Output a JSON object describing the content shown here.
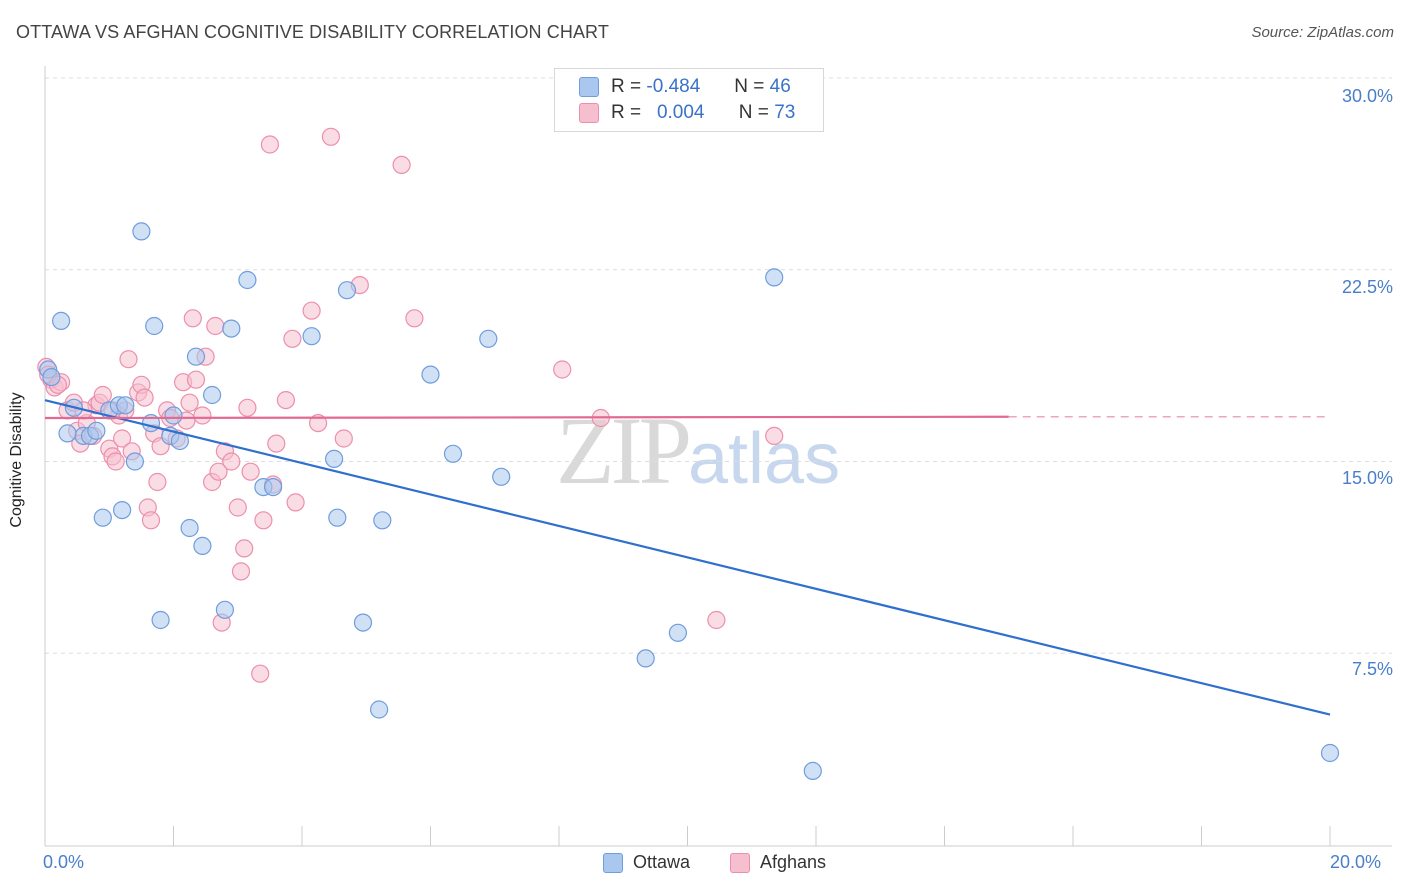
{
  "title": "OTTAWA VS AFGHAN COGNITIVE DISABILITY CORRELATION CHART",
  "source": "Source: ZipAtlas.com",
  "watermark": {
    "zip": "ZIP",
    "atlas": "atlas"
  },
  "legend": {
    "rows": [
      {
        "r_label": "R =",
        "r_value": "-0.484",
        "n_label": "N =",
        "n_value": "46"
      },
      {
        "r_label": "R =",
        "r_value": "0.004",
        "n_label": "N =",
        "n_value": "73"
      }
    ],
    "bottom": [
      "Ottawa",
      "Afghans"
    ]
  },
  "colors": {
    "ottawa_fill": "#aac8ef",
    "ottawa_stroke": "#6f9ddd",
    "ottawa_line": "#2f6fce",
    "afghan_fill": "#f6bfd0",
    "afghan_stroke": "#ec8fad",
    "afghan_line": "#e26a92",
    "grid": "#dddddd",
    "tick_text": "#4a7ec9"
  },
  "chart_data": {
    "type": "scatter",
    "title": "OTTAWA VS AFGHAN COGNITIVE DISABILITY CORRELATION CHART",
    "xlabel": "",
    "ylabel": "Cognitive Disability",
    "xlim": [
      0,
      20
    ],
    "ylim": [
      0,
      31
    ],
    "x_tick_labels": [
      "0.0%",
      "20.0%"
    ],
    "y_ticks": [
      7.5,
      15.0,
      22.5,
      30.0
    ],
    "y_tick_labels": [
      "7.5%",
      "15.0%",
      "22.5%",
      "30.0%"
    ],
    "series": [
      {
        "name": "Ottawa",
        "r": -0.484,
        "n": 46,
        "trend": {
          "x": [
            0,
            20
          ],
          "y": [
            17.4,
            5.1
          ],
          "dashed_from": null
        },
        "points": [
          [
            0.05,
            18.6
          ],
          [
            0.25,
            20.5
          ],
          [
            0.45,
            17.1
          ],
          [
            0.6,
            16.0
          ],
          [
            0.7,
            16.0
          ],
          [
            0.8,
            16.2
          ],
          [
            0.9,
            12.8
          ],
          [
            1.0,
            17.0
          ],
          [
            1.15,
            17.2
          ],
          [
            1.2,
            13.1
          ],
          [
            1.4,
            15.0
          ],
          [
            1.5,
            24.0
          ],
          [
            1.65,
            16.5
          ],
          [
            1.7,
            20.3
          ],
          [
            1.8,
            8.8
          ],
          [
            1.95,
            16.0
          ],
          [
            2.0,
            16.8
          ],
          [
            2.1,
            15.8
          ],
          [
            2.25,
            12.4
          ],
          [
            2.35,
            19.1
          ],
          [
            2.45,
            11.7
          ],
          [
            2.6,
            17.6
          ],
          [
            2.8,
            9.2
          ],
          [
            2.9,
            20.2
          ],
          [
            3.15,
            22.1
          ],
          [
            3.4,
            14.0
          ],
          [
            3.55,
            14.0
          ],
          [
            4.15,
            19.9
          ],
          [
            4.5,
            15.1
          ],
          [
            4.55,
            12.8
          ],
          [
            4.7,
            21.7
          ],
          [
            4.95,
            8.7
          ],
          [
            5.2,
            5.3
          ],
          [
            5.25,
            12.7
          ],
          [
            6.0,
            18.4
          ],
          [
            6.35,
            15.3
          ],
          [
            6.9,
            19.8
          ],
          [
            7.1,
            14.4
          ],
          [
            9.35,
            7.3
          ],
          [
            9.85,
            8.3
          ],
          [
            11.35,
            22.2
          ],
          [
            11.95,
            2.9
          ],
          [
            20.0,
            3.6
          ],
          [
            0.1,
            18.3
          ],
          [
            0.35,
            16.1
          ],
          [
            1.25,
            17.2
          ]
        ]
      },
      {
        "name": "Afghans",
        "r": 0.004,
        "n": 73,
        "trend": {
          "x": [
            0,
            15
          ],
          "y": [
            16.7,
            16.75
          ],
          "dashed_from": 15,
          "dashed_to": 20
        },
        "points": [
          [
            0.02,
            18.7
          ],
          [
            0.1,
            18.2
          ],
          [
            0.15,
            17.9
          ],
          [
            0.25,
            18.1
          ],
          [
            0.35,
            17.0
          ],
          [
            0.45,
            17.3
          ],
          [
            0.5,
            16.2
          ],
          [
            0.55,
            15.7
          ],
          [
            0.65,
            16.5
          ],
          [
            0.75,
            16.0
          ],
          [
            0.8,
            17.2
          ],
          [
            0.85,
            17.3
          ],
          [
            0.9,
            17.6
          ],
          [
            1.0,
            15.5
          ],
          [
            1.05,
            15.2
          ],
          [
            1.1,
            15.0
          ],
          [
            1.15,
            16.8
          ],
          [
            1.2,
            15.9
          ],
          [
            1.25,
            17.0
          ],
          [
            1.3,
            19.0
          ],
          [
            1.35,
            15.4
          ],
          [
            1.45,
            17.7
          ],
          [
            1.5,
            18.0
          ],
          [
            1.55,
            17.5
          ],
          [
            1.6,
            13.2
          ],
          [
            1.65,
            12.7
          ],
          [
            1.7,
            16.1
          ],
          [
            1.75,
            14.2
          ],
          [
            1.8,
            15.6
          ],
          [
            1.9,
            17.0
          ],
          [
            1.95,
            16.7
          ],
          [
            2.05,
            15.9
          ],
          [
            2.15,
            18.1
          ],
          [
            2.2,
            16.6
          ],
          [
            2.25,
            17.3
          ],
          [
            2.3,
            20.6
          ],
          [
            2.35,
            18.2
          ],
          [
            2.45,
            16.8
          ],
          [
            2.5,
            19.1
          ],
          [
            2.6,
            14.2
          ],
          [
            2.65,
            20.3
          ],
          [
            2.7,
            14.6
          ],
          [
            2.75,
            8.7
          ],
          [
            2.8,
            15.4
          ],
          [
            2.9,
            15.0
          ],
          [
            3.0,
            13.2
          ],
          [
            3.05,
            10.7
          ],
          [
            3.1,
            11.6
          ],
          [
            3.15,
            17.1
          ],
          [
            3.2,
            14.6
          ],
          [
            3.35,
            6.7
          ],
          [
            3.4,
            12.7
          ],
          [
            3.5,
            27.4
          ],
          [
            3.55,
            14.1
          ],
          [
            3.6,
            15.7
          ],
          [
            3.75,
            17.4
          ],
          [
            3.85,
            19.8
          ],
          [
            3.9,
            13.4
          ],
          [
            4.15,
            20.9
          ],
          [
            4.25,
            16.5
          ],
          [
            4.45,
            27.7
          ],
          [
            4.65,
            15.9
          ],
          [
            4.9,
            21.9
          ],
          [
            5.55,
            26.6
          ],
          [
            5.75,
            20.6
          ],
          [
            8.05,
            18.6
          ],
          [
            8.65,
            16.7
          ],
          [
            10.45,
            8.8
          ],
          [
            11.35,
            16.0
          ],
          [
            0.05,
            18.4
          ],
          [
            0.2,
            18.0
          ],
          [
            0.6,
            17.0
          ],
          [
            1.05,
            17.0
          ]
        ]
      }
    ]
  }
}
